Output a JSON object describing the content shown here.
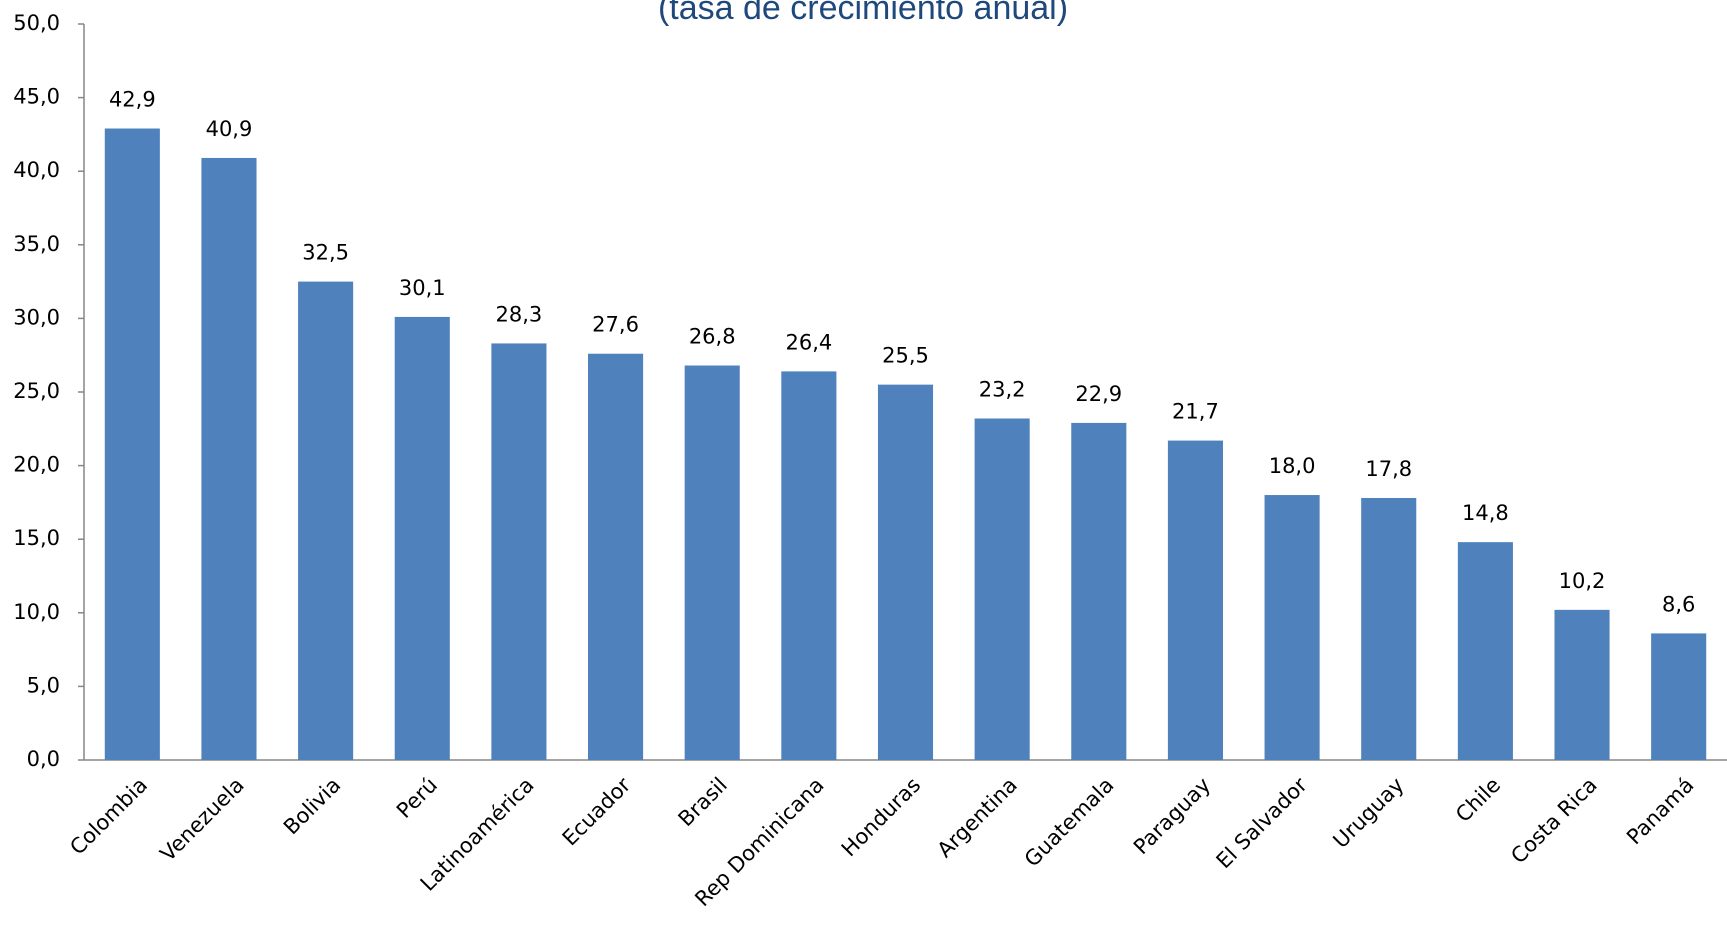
{
  "chart_data": {
    "type": "bar",
    "title": "(tasa de crecimiento anual)",
    "categories": [
      "Colombia",
      "Venezuela",
      "Bolivia",
      "Perú",
      "Latinoamérica",
      "Ecuador",
      "Brasil",
      "Rep Dominicana",
      "Honduras",
      "Argentina",
      "Guatemala",
      "Paraguay",
      "El Salvador",
      "Uruguay",
      "Chile",
      "Costa Rica",
      "Panamá"
    ],
    "values": [
      42.9,
      40.9,
      32.5,
      30.1,
      28.3,
      27.6,
      26.8,
      26.4,
      25.5,
      23.2,
      22.9,
      21.7,
      18.0,
      17.8,
      14.8,
      10.2,
      8.6
    ],
    "value_labels": [
      "42,9",
      "40,9",
      "32,5",
      "30,1",
      "28,3",
      "27,6",
      "26,8",
      "26,4",
      "25,5",
      "23,2",
      "22,9",
      "21,7",
      "18,0",
      "17,8",
      "14,8",
      "10,2",
      "8,6"
    ],
    "color": "#4f81bd",
    "ylim": [
      0,
      50
    ],
    "yticks": [
      {
        "value": 0,
        "label": "0,0"
      },
      {
        "value": 5,
        "label": "5,0"
      },
      {
        "value": 10,
        "label": "10,0"
      },
      {
        "value": 15,
        "label": "15,0"
      },
      {
        "value": 20,
        "label": "20,0"
      },
      {
        "value": 25,
        "label": "25,0"
      },
      {
        "value": 30,
        "label": "30,0"
      },
      {
        "value": 35,
        "label": "35,0"
      },
      {
        "value": 40,
        "label": "40,0"
      },
      {
        "value": 45,
        "label": "45,0"
      },
      {
        "value": 50,
        "label": "50,0"
      }
    ],
    "grid": false
  }
}
